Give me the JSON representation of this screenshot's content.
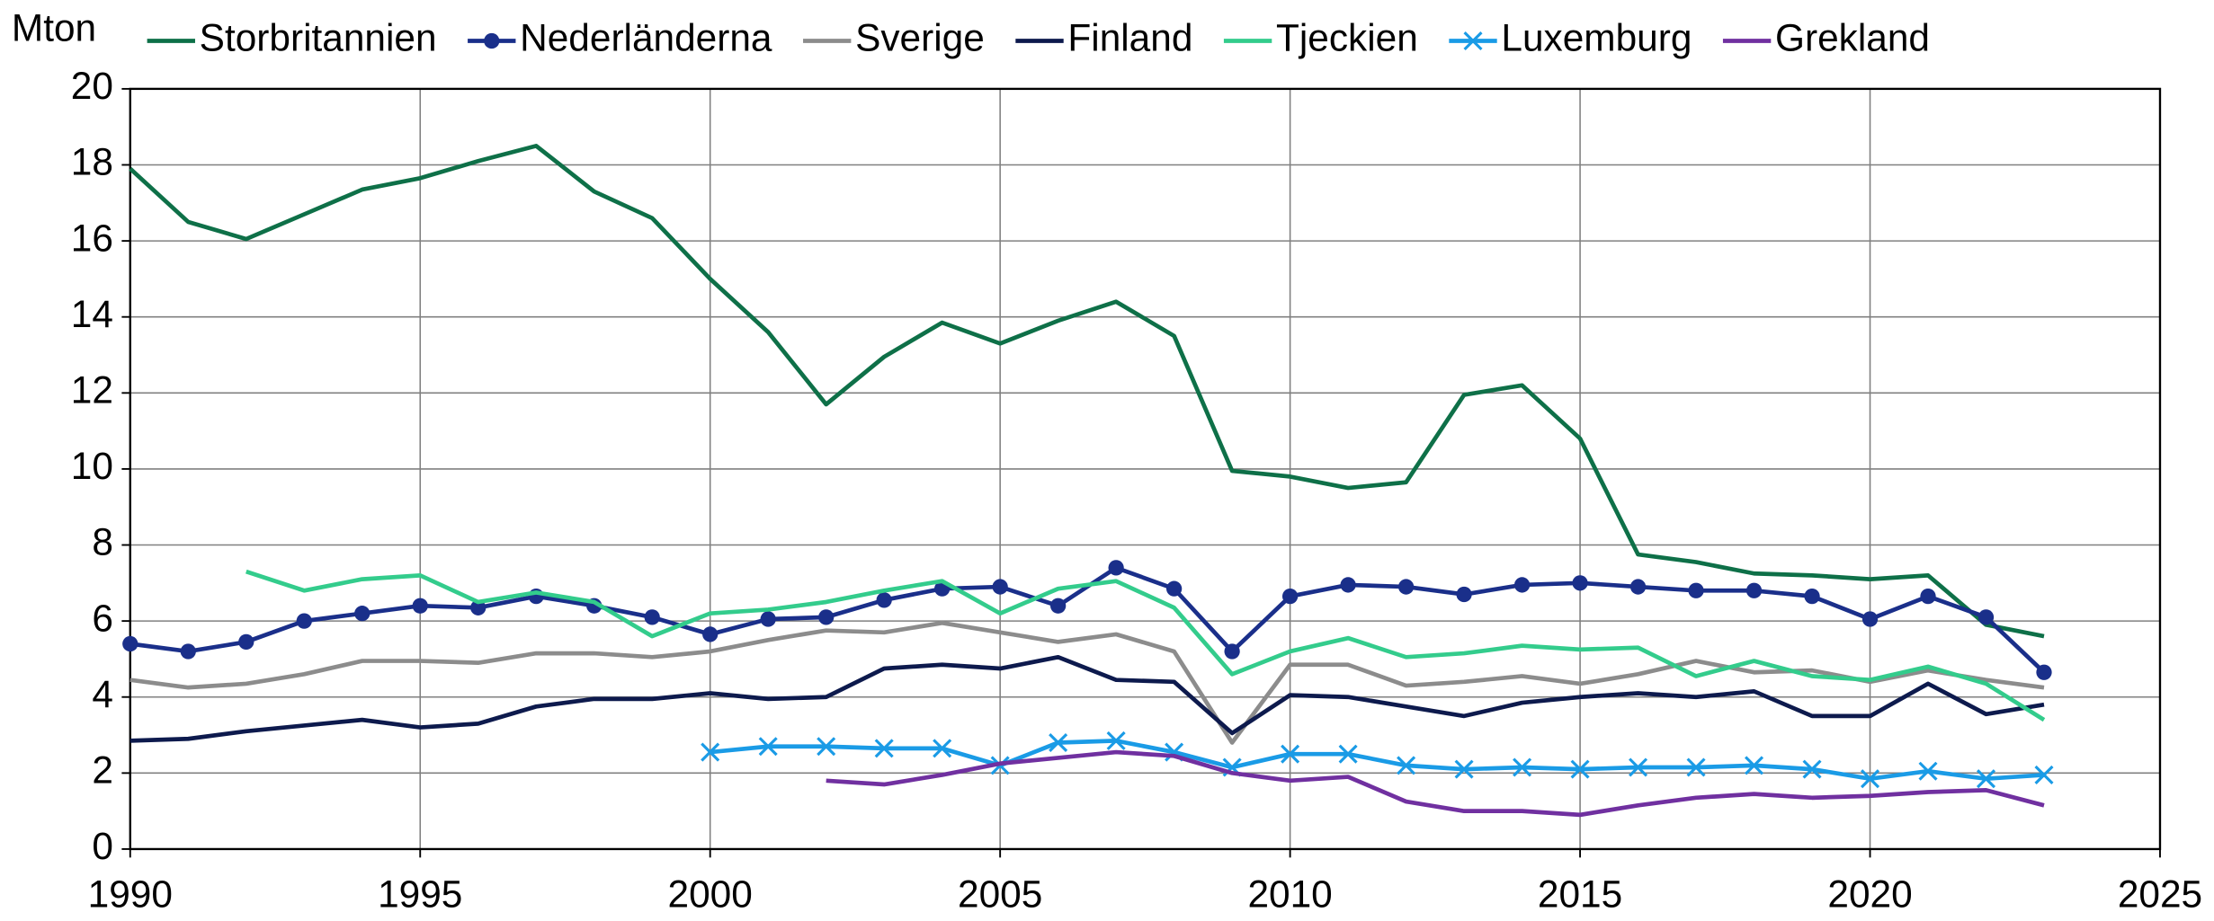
{
  "chart_data": {
    "type": "line",
    "ylabel": "Mton",
    "x": [
      1990,
      1991,
      1992,
      1993,
      1994,
      1995,
      1996,
      1997,
      1998,
      1999,
      2000,
      2001,
      2002,
      2003,
      2004,
      2005,
      2006,
      2007,
      2008,
      2009,
      2010,
      2011,
      2012,
      2013,
      2014,
      2015,
      2016,
      2017,
      2018,
      2019,
      2020,
      2021,
      2022,
      2023
    ],
    "xlim": [
      1990,
      2025
    ],
    "xticks": [
      1990,
      1995,
      2000,
      2005,
      2010,
      2015,
      2020,
      2025
    ],
    "ylim": [
      0,
      20
    ],
    "yticks": [
      0,
      2,
      4,
      6,
      8,
      10,
      12,
      14,
      16,
      18,
      20
    ],
    "grid": true,
    "legend": "top",
    "series": [
      {
        "name": "Storbritannien",
        "color": "#0e7048",
        "marker": "none",
        "values": [
          17.9,
          16.5,
          16.05,
          16.7,
          17.35,
          17.65,
          18.1,
          18.5,
          17.3,
          16.6,
          15.0,
          13.6,
          11.7,
          12.95,
          13.85,
          13.3,
          13.9,
          14.4,
          13.5,
          9.95,
          9.8,
          9.5,
          9.65,
          11.95,
          12.2,
          10.8,
          7.75,
          7.55,
          7.25,
          7.2,
          7.1,
          7.2,
          5.9,
          5.6
        ]
      },
      {
        "name": "Nederländerna",
        "color": "#1a2f8a",
        "marker": "circle",
        "values": [
          5.4,
          5.2,
          5.45,
          6.0,
          6.2,
          6.4,
          6.35,
          6.65,
          6.4,
          6.1,
          5.65,
          6.05,
          6.1,
          6.55,
          6.85,
          6.9,
          6.4,
          7.4,
          6.85,
          5.2,
          6.65,
          6.95,
          6.9,
          6.7,
          6.95,
          7.0,
          6.9,
          6.8,
          6.8,
          6.65,
          6.05,
          6.65,
          6.1,
          4.65
        ]
      },
      {
        "name": "Sverige",
        "color": "#8c8c8c",
        "marker": "none",
        "values": [
          4.45,
          4.25,
          4.35,
          4.6,
          4.95,
          4.95,
          4.9,
          5.15,
          5.15,
          5.05,
          5.2,
          5.5,
          5.75,
          5.7,
          5.95,
          5.7,
          5.45,
          5.65,
          5.2,
          2.8,
          4.85,
          4.85,
          4.3,
          4.4,
          4.55,
          4.35,
          4.6,
          4.95,
          4.65,
          4.7,
          4.4,
          4.7,
          4.45,
          4.25
        ]
      },
      {
        "name": "Finland",
        "color": "#0d1a4d",
        "marker": "none",
        "values": [
          2.85,
          2.9,
          3.1,
          3.25,
          3.4,
          3.2,
          3.3,
          3.75,
          3.95,
          3.95,
          4.1,
          3.95,
          4.0,
          4.75,
          4.85,
          4.75,
          5.05,
          4.45,
          4.4,
          3.05,
          4.05,
          4.0,
          3.75,
          3.5,
          3.85,
          4.0,
          4.1,
          4.0,
          4.15,
          3.5,
          3.5,
          4.35,
          3.55,
          3.8
        ]
      },
      {
        "name": "Tjeckien",
        "color": "#33cc8c",
        "marker": "none",
        "values": [
          null,
          null,
          7.3,
          6.8,
          7.1,
          7.2,
          6.5,
          6.75,
          6.5,
          5.6,
          6.2,
          6.3,
          6.5,
          6.8,
          7.05,
          6.2,
          6.85,
          7.05,
          6.35,
          4.6,
          5.2,
          5.55,
          5.05,
          5.15,
          5.35,
          5.25,
          5.3,
          4.55,
          4.95,
          4.55,
          4.45,
          4.8,
          4.35,
          3.4
        ]
      },
      {
        "name": "Luxemburg",
        "color": "#1a9be6",
        "marker": "x",
        "values": [
          null,
          null,
          null,
          null,
          null,
          null,
          null,
          null,
          null,
          null,
          2.55,
          2.7,
          2.7,
          2.65,
          2.65,
          2.2,
          2.8,
          2.85,
          2.55,
          2.15,
          2.5,
          2.5,
          2.2,
          2.1,
          2.15,
          2.1,
          2.15,
          2.15,
          2.2,
          2.1,
          1.85,
          2.05,
          1.85,
          1.95
        ]
      },
      {
        "name": "Grekland",
        "color": "#7030a0",
        "marker": "none",
        "values": [
          null,
          null,
          null,
          null,
          null,
          null,
          null,
          null,
          null,
          null,
          null,
          null,
          1.8,
          1.7,
          1.95,
          2.25,
          2.4,
          2.55,
          2.45,
          2.0,
          1.8,
          1.9,
          1.25,
          1.0,
          1.0,
          0.9,
          1.15,
          1.35,
          1.45,
          1.35,
          1.4,
          1.5,
          1.55,
          1.15
        ]
      }
    ]
  }
}
